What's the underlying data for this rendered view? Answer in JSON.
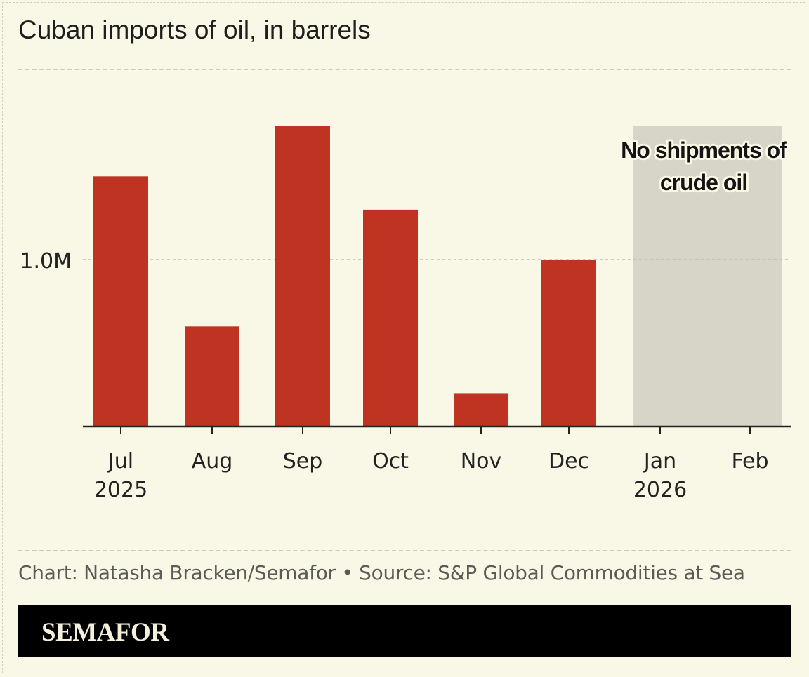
{
  "title": "Cuban imports of oil, in barrels",
  "credit": "Chart: Natasha Bracken/Semafor • Source: S&P Global Commodities at Sea",
  "brand": "SEMAFOR",
  "colors": {
    "background": "#f9f7e6",
    "bar": "#bf3323",
    "shade": "#d7d5c8",
    "axis": "#222222",
    "gridline": "#b9b6a6"
  },
  "chart_data": {
    "type": "bar",
    "title": "Cuban imports of oil, in barrels",
    "categories": [
      "Jul",
      "Aug",
      "Sep",
      "Oct",
      "Nov",
      "Dec",
      "Jan",
      "Feb"
    ],
    "year_labels": [
      "2025",
      "",
      "",
      "",
      "",
      "",
      "2026",
      ""
    ],
    "values": [
      1500000,
      600000,
      1800000,
      1300000,
      200000,
      1000000,
      null,
      null
    ],
    "ylim": [
      0,
      1950000
    ],
    "yticks": [
      1000000
    ],
    "ytick_labels": [
      "1.0M"
    ],
    "shaded_region": {
      "categories": [
        "Jan",
        "Feb"
      ],
      "label_lines": [
        "No shipments of",
        "crude oil"
      ]
    },
    "grid": "horizontal dashed at 1.0M",
    "legend": "none"
  }
}
